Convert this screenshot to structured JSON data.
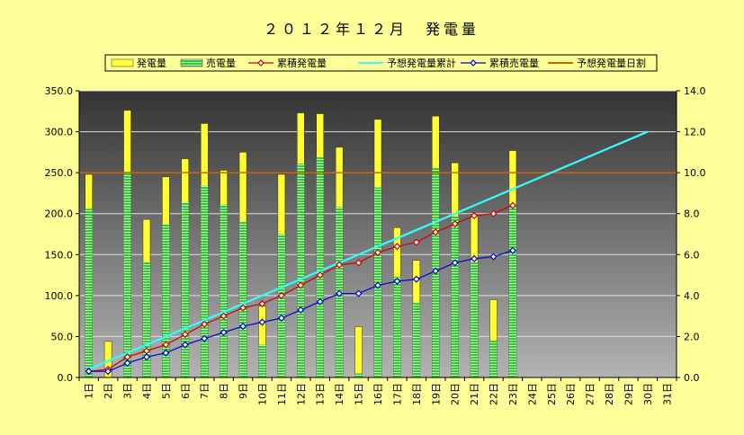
{
  "chart_data": {
    "type": "bar",
    "title": "２０１２年１２月　発電量",
    "categories": [
      "1日",
      "2日",
      "3日",
      "4日",
      "5日",
      "6日",
      "7日",
      "8日",
      "9日",
      "10日",
      "11日",
      "12日",
      "13日",
      "14日",
      "15日",
      "16日",
      "17日",
      "18日",
      "19日",
      "20日",
      "21日",
      "22日",
      "23日",
      "24日",
      "25日",
      "26日",
      "27日",
      "28日",
      "29日",
      "30日",
      "31日"
    ],
    "y_left": {
      "lim": [
        0,
        350
      ],
      "ticks": [
        "0.0",
        "50.0",
        "100.0",
        "150.0",
        "200.0",
        "250.0",
        "300.0",
        "350.0"
      ]
    },
    "y_right": {
      "lim": [
        0,
        14
      ],
      "ticks": [
        "0.0",
        "2.0",
        "4.0",
        "6.0",
        "8.0",
        "10.0",
        "12.0",
        "14.0"
      ]
    },
    "grid": true,
    "legend_position": "top",
    "series": [
      {
        "name": "発電量",
        "kind": "bar",
        "axis": "left",
        "color": "#ffff33",
        "values": [
          248,
          44,
          326,
          193,
          245,
          267,
          310,
          253,
          275,
          87,
          248,
          323,
          322,
          281,
          62,
          315,
          183,
          143,
          319,
          262,
          199,
          95,
          277,
          null,
          null,
          null,
          null,
          null,
          null,
          null,
          null
        ]
      },
      {
        "name": "売電量",
        "kind": "bar",
        "axis": "left",
        "color": "#33cc33",
        "values": [
          206,
          0,
          251,
          141,
          187,
          214,
          234,
          211,
          190,
          40,
          175,
          261,
          269,
          208,
          5,
          232,
          123,
          91,
          256,
          197,
          141,
          45,
          209,
          null,
          null,
          null,
          null,
          null,
          null,
          null,
          null
        ]
      },
      {
        "name": "累積発電量",
        "kind": "line",
        "axis": "right",
        "color": "#cc0000",
        "values": [
          0.3,
          0.4,
          1.0,
          1.3,
          1.6,
          2.1,
          2.6,
          3.0,
          3.4,
          3.6,
          4.0,
          4.5,
          5.0,
          5.5,
          5.6,
          6.1,
          6.4,
          6.6,
          7.1,
          7.5,
          7.9,
          8.0,
          8.4,
          null,
          null,
          null,
          null,
          null,
          null,
          null,
          null
        ]
      },
      {
        "name": "予想発電量累計",
        "kind": "line",
        "axis": "right",
        "color": "#33ffff",
        "values": [
          0.4,
          0.8,
          1.2,
          1.6,
          2.0,
          2.4,
          2.8,
          3.2,
          3.6,
          4.0,
          4.4,
          4.8,
          5.2,
          5.6,
          6.0,
          6.4,
          6.8,
          7.2,
          7.6,
          8.0,
          8.4,
          8.8,
          9.2,
          9.6,
          10.0,
          10.4,
          10.8,
          11.2,
          11.6,
          12.0,
          null
        ]
      },
      {
        "name": "累積売電量",
        "kind": "line",
        "axis": "right",
        "color": "#0000cc",
        "values": [
          0.3,
          0.3,
          0.7,
          1.0,
          1.2,
          1.6,
          1.9,
          2.2,
          2.5,
          2.7,
          2.9,
          3.3,
          3.7,
          4.1,
          4.1,
          4.5,
          4.7,
          4.8,
          5.2,
          5.6,
          5.8,
          5.9,
          6.2,
          null,
          null,
          null,
          null,
          null,
          null,
          null,
          null
        ]
      },
      {
        "name": "予想発電量日割",
        "kind": "hline",
        "axis": "left",
        "color": "#cc6600",
        "value": 250
      }
    ]
  }
}
